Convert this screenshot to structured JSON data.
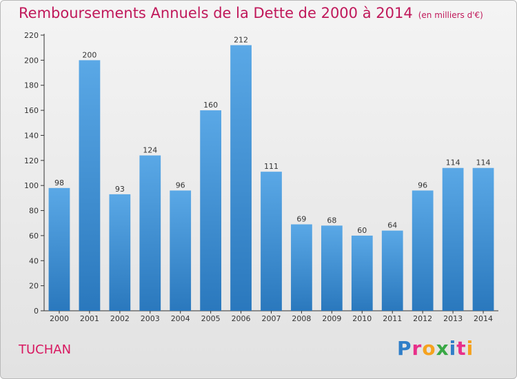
{
  "chart_data": {
    "type": "bar",
    "title": "Remboursements Annuels de la Dette de 2000 à 2014",
    "unit_label": "(en milliers d'€)",
    "commune": "TUCHAN",
    "brand": "Proxiti",
    "categories": [
      "2000",
      "2001",
      "2002",
      "2003",
      "2004",
      "2005",
      "2006",
      "2007",
      "2008",
      "2009",
      "2010",
      "2011",
      "2012",
      "2013",
      "2014"
    ],
    "values": [
      98,
      200,
      93,
      124,
      96,
      160,
      212,
      111,
      69,
      68,
      60,
      64,
      96,
      114,
      114
    ],
    "ylim": [
      0,
      220
    ],
    "yticks": [
      0,
      20,
      40,
      60,
      80,
      100,
      120,
      140,
      160,
      180,
      200,
      220
    ],
    "grid": false,
    "colors": {
      "bar_light": "#5aa8e6",
      "bar_dark": "#2a78bd",
      "title": "#c0185a",
      "commune": "#d81860"
    }
  }
}
